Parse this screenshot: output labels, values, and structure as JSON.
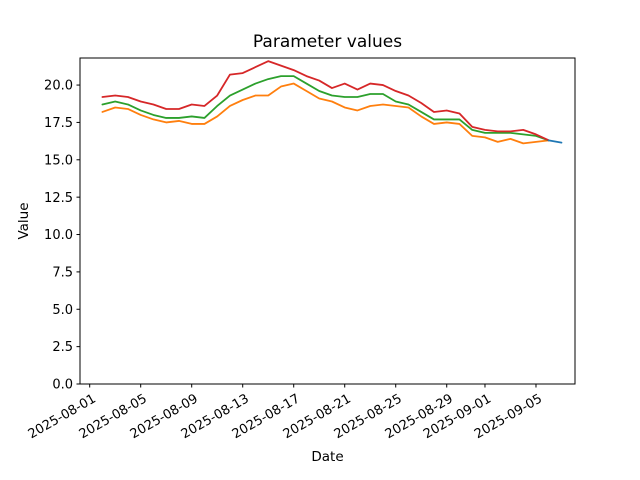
{
  "window": {
    "background_color": "#ffffff",
    "text_color": "#000000"
  },
  "chart_data": {
    "type": "line",
    "title": "Parameter values",
    "xlabel": "Date",
    "ylabel": "Value",
    "grid": false,
    "legend": "none",
    "x_epoch": "2025-08-01",
    "xlim_days": [
      -0.76,
      38.06
    ],
    "ylim": [
      0,
      21.81
    ],
    "y_tick_values": [
      0.0,
      2.5,
      5.0,
      7.5,
      10.0,
      12.5,
      15.0,
      17.5,
      20.0
    ],
    "y_tick_labels": [
      "0.0",
      "2.5",
      "5.0",
      "7.5",
      "10.0",
      "12.5",
      "15.0",
      "17.5",
      "20.0"
    ],
    "x_ticks": [
      "2025-08-01",
      "2025-08-05",
      "2025-08-09",
      "2025-08-13",
      "2025-08-17",
      "2025-08-21",
      "2025-08-25",
      "2025-08-29",
      "2025-09-01",
      "2025-09-05"
    ],
    "x_tick_rotation_deg": 30,
    "dates": [
      "2025-08-02",
      "2025-08-03",
      "2025-08-04",
      "2025-08-05",
      "2025-08-06",
      "2025-08-07",
      "2025-08-08",
      "2025-08-09",
      "2025-08-10",
      "2025-08-11",
      "2025-08-12",
      "2025-08-13",
      "2025-08-14",
      "2025-08-15",
      "2025-08-16",
      "2025-08-17",
      "2025-08-18",
      "2025-08-19",
      "2025-08-20",
      "2025-08-21",
      "2025-08-22",
      "2025-08-23",
      "2025-08-24",
      "2025-08-25",
      "2025-08-26",
      "2025-08-27",
      "2025-08-28",
      "2025-08-29",
      "2025-08-30",
      "2025-08-31",
      "2025-09-01",
      "2025-09-02",
      "2025-09-03",
      "2025-09-04",
      "2025-09-05",
      "2025-09-06"
    ],
    "series": [
      {
        "name": "orange-line",
        "color": "#ff7f0e",
        "values": [
          18.2,
          18.5,
          18.4,
          18.0,
          17.7,
          17.5,
          17.6,
          17.4,
          17.4,
          17.9,
          18.6,
          19.0,
          19.3,
          19.3,
          19.9,
          20.1,
          19.6,
          19.1,
          18.9,
          18.5,
          18.3,
          18.6,
          18.7,
          18.6,
          18.5,
          17.9,
          17.4,
          17.5,
          17.4,
          16.6,
          16.5,
          16.2,
          16.4,
          16.1,
          16.2,
          16.3
        ]
      },
      {
        "name": "green-line",
        "color": "#2ca02c",
        "values": [
          18.7,
          18.9,
          18.7,
          18.3,
          18.0,
          17.8,
          17.8,
          17.9,
          17.8,
          18.6,
          19.3,
          19.7,
          20.1,
          20.4,
          20.6,
          20.6,
          20.1,
          19.6,
          19.3,
          19.2,
          19.2,
          19.4,
          19.4,
          18.9,
          18.7,
          18.2,
          17.7,
          17.7,
          17.7,
          17.0,
          16.8,
          16.8,
          16.8,
          16.7,
          16.6,
          16.3
        ]
      },
      {
        "name": "red-line",
        "color": "#d62728",
        "values": [
          19.2,
          19.3,
          19.2,
          18.9,
          18.7,
          18.4,
          18.4,
          18.7,
          18.6,
          19.3,
          20.7,
          20.8,
          21.2,
          21.6,
          21.3,
          21.0,
          20.6,
          20.3,
          19.8,
          20.1,
          19.7,
          20.1,
          20.0,
          19.6,
          19.3,
          18.8,
          18.2,
          18.3,
          18.1,
          17.2,
          17.0,
          16.9,
          16.9,
          17.0,
          16.7,
          16.3
        ]
      },
      {
        "name": "blue-line",
        "color": "#1f77b4",
        "dates": [
          "2025-09-06",
          "2025-09-07"
        ],
        "values": [
          16.3,
          16.15
        ]
      }
    ]
  }
}
